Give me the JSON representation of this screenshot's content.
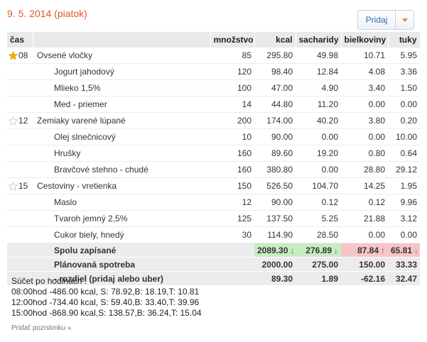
{
  "header": {
    "date": "9. 5. 2014 (piatok)",
    "add_button": "Pridaj"
  },
  "columns": {
    "time": "čas",
    "name": "",
    "qty": "množstvo",
    "kcal": "kcal",
    "carbs": "sacharidy",
    "protein": "bielkoviny",
    "fat": "tuky"
  },
  "rows": [
    {
      "time": "08",
      "star": true,
      "name": "Ovsené vločky",
      "qty": "85",
      "kcal": "295.80",
      "carbs": "49.98",
      "protein": "10.71",
      "fat": "5.95"
    },
    {
      "time": "",
      "star": null,
      "name": "Jogurt jahodový",
      "qty": "120",
      "kcal": "98.40",
      "carbs": "12.84",
      "protein": "4.08",
      "fat": "3.36"
    },
    {
      "time": "",
      "star": null,
      "name": "Mlieko 1,5%",
      "qty": "100",
      "kcal": "47.00",
      "carbs": "4.90",
      "protein": "3.40",
      "fat": "1.50"
    },
    {
      "time": "",
      "star": null,
      "name": "Med - priemer",
      "qty": "14",
      "kcal": "44.80",
      "carbs": "11.20",
      "protein": "0.00",
      "fat": "0.00"
    },
    {
      "time": "12",
      "star": false,
      "name": "Zemiaky varené lúpané",
      "qty": "200",
      "kcal": "174.00",
      "carbs": "40.20",
      "protein": "3.80",
      "fat": "0.20"
    },
    {
      "time": "",
      "star": null,
      "name": "Olej slnečnicový",
      "qty": "10",
      "kcal": "90.00",
      "carbs": "0.00",
      "protein": "0.00",
      "fat": "10.00"
    },
    {
      "time": "",
      "star": null,
      "name": "Hrušky",
      "qty": "160",
      "kcal": "89.60",
      "carbs": "19.20",
      "protein": "0.80",
      "fat": "0.64"
    },
    {
      "time": "",
      "star": null,
      "name": "Bravčové stehno - chudé",
      "qty": "160",
      "kcal": "380.80",
      "carbs": "0.00",
      "protein": "28.80",
      "fat": "29.12"
    },
    {
      "time": "15",
      "star": false,
      "name": "Cestoviny - vretienka",
      "qty": "150",
      "kcal": "526.50",
      "carbs": "104.70",
      "protein": "14.25",
      "fat": "1.95"
    },
    {
      "time": "",
      "star": null,
      "name": "Maslo",
      "qty": "12",
      "kcal": "90.00",
      "carbs": "0.12",
      "protein": "0.12",
      "fat": "9.96"
    },
    {
      "time": "",
      "star": null,
      "name": "Tvaroh jemný 2,5%",
      "qty": "125",
      "kcal": "137.50",
      "carbs": "5.25",
      "protein": "21.88",
      "fat": "3.12"
    },
    {
      "time": "",
      "star": null,
      "name": "Cukor biely, hnedý",
      "qty": "30",
      "kcal": "114.90",
      "carbs": "28.50",
      "protein": "0.00",
      "fat": "0.00"
    }
  ],
  "totals": {
    "label": "Spolu zapísané",
    "kcal": "2089.30",
    "kcal_arrow": "↓",
    "carbs": "276.89",
    "carbs_arrow": "↓",
    "protein": "87.84",
    "protein_arrow": "↑",
    "fat": "65.81",
    "fat_arrow": "↓"
  },
  "plan": {
    "label": "Plánovaná spotreba",
    "kcal": "2000.00",
    "carbs": "275.00",
    "protein": "150.00",
    "fat": "33.33"
  },
  "diff": {
    "label": "- rozdiel (pridaj alebo uber)",
    "kcal": "89.30",
    "carbs": "1.89",
    "protein": "-62.16",
    "fat": "32.47"
  },
  "summary": {
    "title": "Súčet po hodinách :",
    "lines": [
      "08:00hod -486.00 kcal,   S: 78.92,B: 18.19,T: 10.81",
      "12:00hod -734.40 kcal,   S: 59.40,B: 33.40,T: 39.96",
      "15:00hod -868.90 kcal,S: 138.57,B: 36.24,T: 15.04"
    ]
  },
  "note_link": "Pridať poznámku »",
  "colors": {
    "accent_orange": "#e05a2a",
    "ok_green": "#c7ecc2",
    "over_red": "#f7c5c5",
    "link_blue": "#2a6db4"
  },
  "icons": {
    "star_filled": "star-filled-icon",
    "star_empty": "star-outline-icon"
  }
}
